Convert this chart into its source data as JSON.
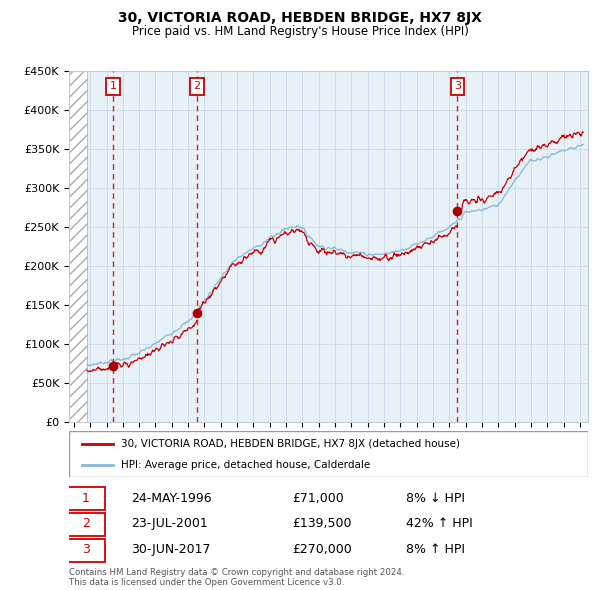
{
  "title": "30, VICTORIA ROAD, HEBDEN BRIDGE, HX7 8JX",
  "subtitle": "Price paid vs. HM Land Registry's House Price Index (HPI)",
  "ylim": [
    0,
    450000
  ],
  "yticks": [
    0,
    50000,
    100000,
    150000,
    200000,
    250000,
    300000,
    350000,
    400000,
    450000
  ],
  "ytick_labels": [
    "£0",
    "£50K",
    "£100K",
    "£150K",
    "£200K",
    "£250K",
    "£300K",
    "£350K",
    "£400K",
    "£450K"
  ],
  "xlim_start": 1993.7,
  "xlim_end": 2025.5,
  "sale1_x": 1996.39,
  "sale1_y": 71000,
  "sale2_x": 2001.55,
  "sale2_y": 139500,
  "sale3_x": 2017.5,
  "sale3_y": 270000,
  "red_line_color": "#cc0000",
  "blue_line_color": "#88b8d8",
  "grid_color": "#ccddee",
  "background_color": "#e8f0f8",
  "legend_line1": "30, VICTORIA ROAD, HEBDEN BRIDGE, HX7 8JX (detached house)",
  "legend_line2": "HPI: Average price, detached house, Calderdale",
  "transactions": [
    {
      "num": "1",
      "date": "24-MAY-1996",
      "price": "£71,000",
      "pct": "8% ↓ HPI"
    },
    {
      "num": "2",
      "date": "23-JUL-2001",
      "price": "£139,500",
      "pct": "42% ↑ HPI"
    },
    {
      "num": "3",
      "date": "30-JUN-2017",
      "price": "£270,000",
      "pct": "8% ↑ HPI"
    }
  ],
  "footer": "Contains HM Land Registry data © Crown copyright and database right 2024.\nThis data is licensed under the Open Government Licence v3.0.",
  "hpi_hatch_end": 1994.8
}
